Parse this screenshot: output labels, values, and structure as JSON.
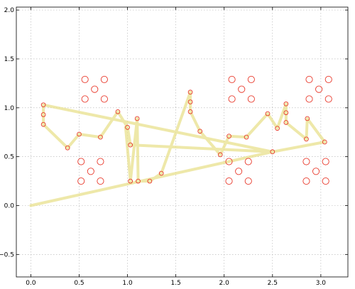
{
  "chart_data": {
    "type": "scatter",
    "title": "",
    "xlabel": "",
    "ylabel": "",
    "xlim": [
      -0.15,
      3.28
    ],
    "ylim": [
      -0.73,
      2.03
    ],
    "xticks": [
      0.0,
      0.5,
      1.0,
      1.5,
      2.0,
      2.5,
      3.0
    ],
    "xtick_labels": [
      "0.0",
      "0.5",
      "1.0",
      "1.5",
      "2.0",
      "2.5",
      "3.0"
    ],
    "yticks": [
      -0.5,
      0.0,
      0.5,
      1.0,
      1.5,
      2.0
    ],
    "ytick_labels": [
      "−0.5",
      "0.0",
      "0.5",
      "1.0",
      "1.5",
      "2.0"
    ],
    "grid": true,
    "colors": {
      "path_line": "#e8e08c",
      "marker_edge": "#e8382a",
      "grid": "#b0b0b0",
      "frame": "#000000"
    },
    "series": [
      {
        "type": "line",
        "points": [
          [
            0.0,
            0.0
          ],
          [
            2.5,
            0.55
          ],
          [
            0.13,
            1.03
          ],
          [
            0.13,
            0.93
          ],
          [
            0.13,
            0.83
          ],
          [
            0.38,
            0.59
          ],
          [
            0.5,
            0.73
          ],
          [
            0.72,
            0.7
          ],
          [
            0.9,
            0.96
          ],
          [
            1.0,
            0.8
          ],
          [
            1.03,
            0.62
          ],
          [
            2.5,
            0.55
          ],
          [
            3.04,
            0.65
          ],
          [
            2.86,
            0.89
          ],
          [
            2.85,
            0.68
          ],
          [
            2.64,
            0.85
          ],
          [
            2.64,
            0.95
          ],
          [
            2.64,
            1.04
          ],
          [
            2.55,
            0.79
          ],
          [
            2.45,
            0.94
          ],
          [
            2.23,
            0.7
          ],
          [
            2.05,
            0.71
          ],
          [
            1.96,
            0.52
          ],
          [
            1.75,
            0.76
          ],
          [
            1.65,
            0.96
          ],
          [
            1.65,
            1.06
          ],
          [
            1.65,
            1.16
          ],
          [
            1.35,
            0.33
          ],
          [
            1.23,
            0.25
          ],
          [
            1.11,
            0.25
          ],
          [
            1.1,
            0.89
          ],
          [
            1.03,
            0.25
          ],
          [
            0.98,
            0.8
          ]
        ]
      },
      {
        "type": "scatter",
        "marker_size": "small",
        "points": [
          [
            0.13,
            1.03
          ],
          [
            0.13,
            0.93
          ],
          [
            0.13,
            0.83
          ],
          [
            0.38,
            0.59
          ],
          [
            0.5,
            0.73
          ],
          [
            0.72,
            0.7
          ],
          [
            0.9,
            0.96
          ],
          [
            1.0,
            0.8
          ],
          [
            1.03,
            0.62
          ],
          [
            1.1,
            0.89
          ],
          [
            1.03,
            0.25
          ],
          [
            1.11,
            0.25
          ],
          [
            1.23,
            0.25
          ],
          [
            1.35,
            0.33
          ],
          [
            1.65,
            1.16
          ],
          [
            1.65,
            1.06
          ],
          [
            1.65,
            0.96
          ],
          [
            1.75,
            0.76
          ],
          [
            1.96,
            0.52
          ],
          [
            2.05,
            0.71
          ],
          [
            2.23,
            0.7
          ],
          [
            2.45,
            0.94
          ],
          [
            2.55,
            0.79
          ],
          [
            2.64,
            1.04
          ],
          [
            2.64,
            0.95
          ],
          [
            2.64,
            0.85
          ],
          [
            2.5,
            0.55
          ],
          [
            2.85,
            0.68
          ],
          [
            2.86,
            0.89
          ],
          [
            3.04,
            0.65
          ]
        ]
      },
      {
        "type": "scatter",
        "marker_size": "large",
        "points": [
          [
            0.56,
            1.29
          ],
          [
            0.76,
            1.29
          ],
          [
            0.66,
            1.19
          ],
          [
            0.56,
            1.09
          ],
          [
            0.76,
            1.09
          ],
          [
            2.08,
            1.29
          ],
          [
            2.28,
            1.29
          ],
          [
            2.18,
            1.19
          ],
          [
            2.08,
            1.09
          ],
          [
            2.28,
            1.09
          ],
          [
            2.88,
            1.29
          ],
          [
            3.08,
            1.29
          ],
          [
            2.98,
            1.19
          ],
          [
            2.88,
            1.09
          ],
          [
            3.08,
            1.09
          ],
          [
            0.52,
            0.45
          ],
          [
            0.72,
            0.45
          ],
          [
            0.62,
            0.35
          ],
          [
            0.52,
            0.25
          ],
          [
            0.72,
            0.25
          ],
          [
            2.05,
            0.45
          ],
          [
            2.25,
            0.45
          ],
          [
            2.15,
            0.35
          ],
          [
            2.05,
            0.25
          ],
          [
            2.25,
            0.25
          ],
          [
            2.85,
            0.45
          ],
          [
            3.05,
            0.45
          ],
          [
            2.95,
            0.35
          ],
          [
            2.85,
            0.25
          ],
          [
            3.05,
            0.25
          ]
        ]
      }
    ]
  }
}
